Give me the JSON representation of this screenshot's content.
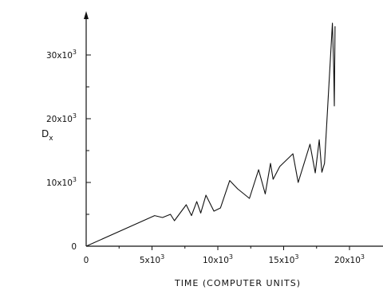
{
  "chart_data": {
    "type": "line",
    "title": "",
    "xlabel": "TIME (COMPUTER UNITS)",
    "ylabel_main": "D",
    "ylabel_sub": "x",
    "xlim": [
      0,
      22000
    ],
    "ylim": [
      0,
      35000
    ],
    "x_ticks": [
      {
        "value": 0,
        "label": "0"
      },
      {
        "value": 5000,
        "label": "5x10",
        "sup": "3"
      },
      {
        "value": 10000,
        "label": "10x10",
        "sup": "3"
      },
      {
        "value": 15000,
        "label": "15x10",
        "sup": "3"
      },
      {
        "value": 20000,
        "label": "20x10",
        "sup": "3"
      }
    ],
    "x_minor_ticks": [
      2500,
      7500,
      12500,
      17500
    ],
    "y_ticks": [
      {
        "value": 0,
        "label": "0"
      },
      {
        "value": 10000,
        "label": "10x10",
        "sup": "3"
      },
      {
        "value": 20000,
        "label": "20x10",
        "sup": "3"
      },
      {
        "value": 30000,
        "label": "30x10",
        "sup": "3"
      }
    ],
    "y_minor_ticks": [
      5000,
      15000,
      25000
    ],
    "series": [
      {
        "x": [
          0,
          5200,
          5800,
          6400,
          6700,
          7600,
          8000,
          8400,
          8700,
          9100,
          9700,
          10200,
          10900,
          11500,
          12400,
          13100,
          13600,
          14000,
          14200,
          14700,
          15700,
          16100,
          17000,
          17400,
          17700,
          17900,
          18100,
          18700,
          18800,
          18850,
          18900
        ],
        "y": [
          0,
          4800,
          4500,
          5000,
          4000,
          6500,
          4800,
          7000,
          5200,
          8000,
          5500,
          6000,
          10300,
          9000,
          7500,
          12000,
          8200,
          13000,
          10500,
          12500,
          14500,
          10000,
          16000,
          11500,
          16700,
          11600,
          13000,
          35000,
          28000,
          22000,
          34500
        ]
      }
    ]
  }
}
